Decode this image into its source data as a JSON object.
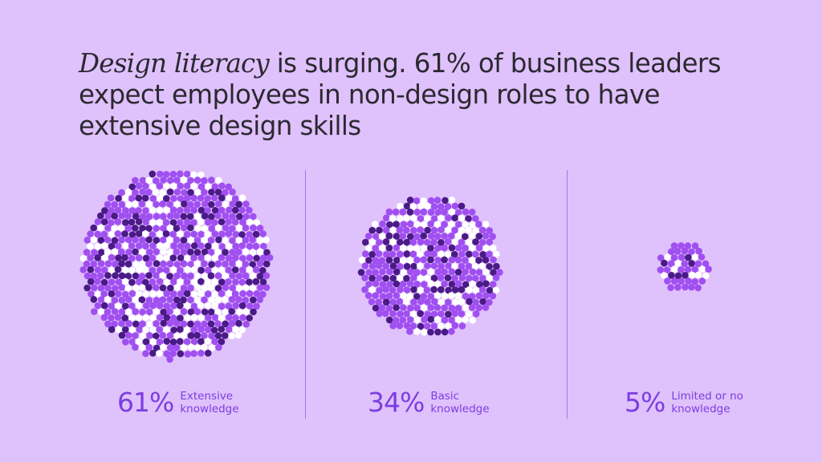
{
  "headline": {
    "emphasis": "Design literacy",
    "rest": " is surging. 61% of business leaders expect employees in non-design roles to have extensive design skills"
  },
  "colors": {
    "background": "#dfc1fc",
    "dot_primary": "#a04ff0",
    "dot_dark": "#4a1a86",
    "dot_light": "#ffffff",
    "accent_text": "#7c3ee0",
    "divider": "#a578ec"
  },
  "chart_data": {
    "type": "bubble",
    "categories": [
      "Extensive knowledge",
      "Basic knowledge",
      "Limited or no knowledge"
    ],
    "values": [
      61,
      34,
      5
    ],
    "unit": "%",
    "stats": [
      {
        "value_label": "61%",
        "label_line1": "Extensive",
        "label_line2": "knowledge"
      },
      {
        "value_label": "34%",
        "label_line1": "Basic",
        "label_line2": "knowledge"
      },
      {
        "value_label": "5%",
        "label_line1": "Limited or no",
        "label_line2": "knowledge"
      }
    ]
  }
}
